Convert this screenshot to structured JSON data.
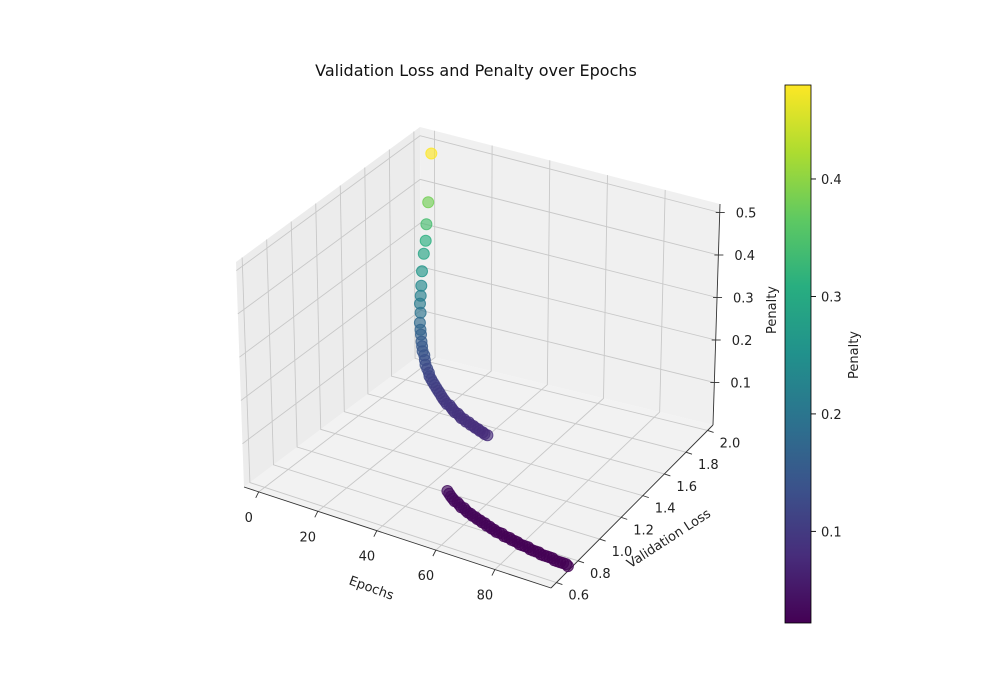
{
  "chart_data": {
    "type": "scatter",
    "title": "Validation Loss and Penalty over Epochs",
    "xlabel": "Epochs",
    "ylabel": "Validation Loss",
    "zlabel": "Penalty",
    "xlim": [
      -5,
      99
    ],
    "ylim": [
      0.55,
      2.05
    ],
    "zlim": [
      0.0,
      0.52
    ],
    "xticks": [
      "0",
      "20",
      "40",
      "60",
      "80"
    ],
    "yticks": [
      "0.6",
      "0.8",
      "1.0",
      "1.2",
      "1.4",
      "1.6",
      "1.8",
      "2.0"
    ],
    "zticks": [
      "0.1",
      "0.2",
      "0.3",
      "0.4",
      "0.5"
    ],
    "grid": true,
    "colormap": "viridis",
    "colorbar": {
      "label": "Penalty",
      "min": 0.022,
      "max": 0.48,
      "ticks": [
        "0.1",
        "0.2",
        "0.3",
        "0.4"
      ]
    },
    "series": [
      {
        "x": [
          1,
          2,
          3,
          4,
          5,
          6,
          7,
          8,
          9,
          10,
          11,
          12,
          13,
          14,
          15,
          16,
          17,
          18,
          19,
          20,
          21,
          22,
          23,
          24,
          25,
          26,
          27,
          28,
          29,
          30,
          31,
          32,
          33,
          34,
          35,
          36,
          37,
          38,
          39,
          40,
          41,
          42,
          43,
          44,
          45,
          46,
          47,
          48,
          49,
          50,
          51,
          52,
          53,
          54,
          55,
          56,
          57,
          58,
          59,
          60,
          61,
          62,
          63,
          64,
          65,
          66,
          67,
          68,
          69,
          70,
          71,
          72,
          73,
          74,
          75,
          76,
          77,
          78,
          79,
          80,
          81,
          82,
          83,
          84,
          85,
          86,
          87,
          88,
          89,
          90,
          91,
          92,
          93,
          94,
          95,
          96,
          97,
          98,
          99,
          100
        ],
        "y": [
          2.0,
          1.95,
          1.91,
          1.88,
          1.84,
          1.8,
          1.77,
          1.74,
          1.71,
          1.69,
          1.66,
          1.64,
          1.62,
          1.6,
          1.58,
          1.56,
          1.55,
          1.53,
          1.51,
          1.5,
          1.49,
          1.47,
          1.46,
          1.45,
          1.44,
          1.43,
          1.42,
          1.41,
          1.4,
          1.39,
          1.38,
          1.37,
          1.37,
          1.36,
          1.35,
          1.34,
          1.34,
          1.33,
          1.32,
          1.32,
          1.31,
          1.31,
          1.3,
          1.3,
          1.29,
          1.29,
          1.28,
          1.28,
          1.27,
          1.27,
          0.89,
          0.88,
          0.87,
          0.86,
          0.85,
          0.85,
          0.84,
          0.83,
          0.83,
          0.82,
          0.81,
          0.81,
          0.8,
          0.8,
          0.79,
          0.79,
          0.78,
          0.78,
          0.77,
          0.77,
          0.76,
          0.76,
          0.75,
          0.75,
          0.75,
          0.74,
          0.74,
          0.74,
          0.73,
          0.73,
          0.73,
          0.72,
          0.72,
          0.72,
          0.72,
          0.71,
          0.71,
          0.71,
          0.71,
          0.7,
          0.7,
          0.7,
          0.7,
          0.7,
          0.69,
          0.69,
          0.69,
          0.69,
          0.69,
          0.68
        ],
        "z": [
          0.48,
          0.38,
          0.34,
          0.31,
          0.29,
          0.26,
          0.235,
          0.22,
          0.21,
          0.195,
          0.18,
          0.17,
          0.165,
          0.155,
          0.15,
          0.145,
          0.14,
          0.135,
          0.13,
          0.125,
          0.12,
          0.118,
          0.115,
          0.112,
          0.11,
          0.107,
          0.105,
          0.103,
          0.1,
          0.098,
          0.097,
          0.095,
          0.094,
          0.092,
          0.091,
          0.09,
          0.089,
          0.088,
          0.087,
          0.086,
          0.085,
          0.085,
          0.084,
          0.083,
          0.083,
          0.082,
          0.082,
          0.081,
          0.081,
          0.08,
          0.04,
          0.038,
          0.036,
          0.035,
          0.034,
          0.033,
          0.032,
          0.031,
          0.031,
          0.03,
          0.03,
          0.029,
          0.029,
          0.028,
          0.028,
          0.027,
          0.027,
          0.027,
          0.026,
          0.026,
          0.026,
          0.025,
          0.025,
          0.025,
          0.025,
          0.024,
          0.024,
          0.024,
          0.024,
          0.024,
          0.023,
          0.023,
          0.023,
          0.023,
          0.023,
          0.023,
          0.022,
          0.022,
          0.022,
          0.022,
          0.022,
          0.022,
          0.022,
          0.022,
          0.022,
          0.022,
          0.022,
          0.022,
          0.022,
          0.022
        ]
      }
    ]
  }
}
